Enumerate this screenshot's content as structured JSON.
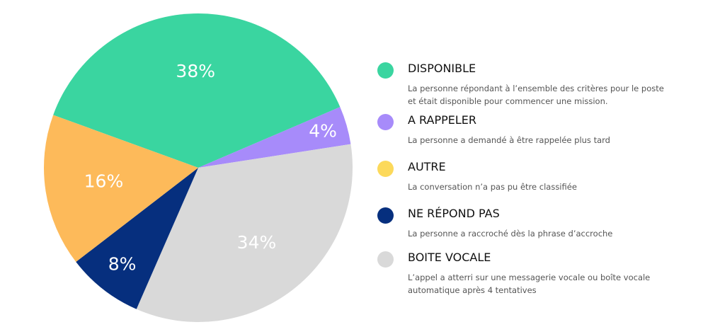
{
  "chart_data": {
    "type": "pie",
    "slices": [
      {
        "label": "DISPONIBLE",
        "value": 38,
        "display": "38%",
        "color": "#3AD5A0",
        "description": "La personne répondant à l’ensemble des critères pour le poste et était disponible pour commencer une mission."
      },
      {
        "label": "A RAPPELER",
        "value": 4,
        "display": "4%",
        "color": "#A78BFA",
        "description": "La personne a demandé à être rappelée plus tard"
      },
      {
        "label": "BOITE VOCALE",
        "value": 34,
        "display": "34%",
        "color": "#D9D9D9",
        "description": "L’appel a atterri sur une messagerie vocale ou boîte vocale automatique après 4 tentatives"
      },
      {
        "label": "NE RÉPOND PAS",
        "value": 8,
        "display": "8%",
        "color": "#062F7E",
        "description": "La personne a raccroché dès la phrase d’accroche"
      },
      {
        "label": "AUTRE",
        "value": 16,
        "display": "16%",
        "color": "#FDBA5A",
        "description": "La conversation n’a pas pu être classifiée"
      }
    ],
    "legend_position": "right"
  },
  "legend": [
    {
      "title": "DISPONIBLE",
      "color": "#3AD5A0",
      "description": "La personne répondant à l’ensemble des critères pour le poste et était disponible pour commencer une mission."
    },
    {
      "title": "A RAPPELER",
      "color": "#A78BFA",
      "description": "La personne a demandé à être rappelée plus tard"
    },
    {
      "title": "AUTRE",
      "color": "#FCD95B",
      "description": "La conversation n’a pas pu être classifiée"
    },
    {
      "title": "NE RÉPOND PAS",
      "color": "#062F7E",
      "description": "La personne a raccroché dès la phrase d’accroche"
    },
    {
      "title": "BOITE VOCALE",
      "color": "#D9D9D9",
      "description": "L’appel a atterri sur une messagerie vocale ou boîte vocale automatique après 4 tentatives"
    }
  ]
}
